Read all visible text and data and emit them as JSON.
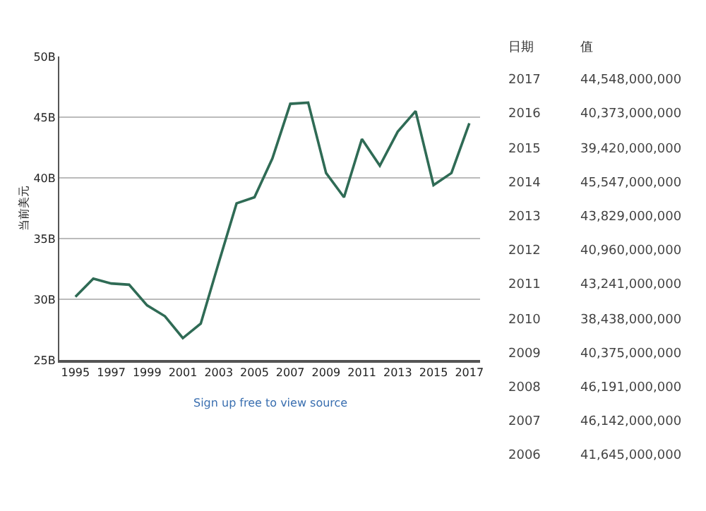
{
  "chart_data": {
    "type": "line",
    "ylabel": "当前美元",
    "x": [
      1995,
      1996,
      1997,
      1998,
      1999,
      2000,
      2001,
      2002,
      2003,
      2004,
      2005,
      2006,
      2007,
      2008,
      2009,
      2010,
      2011,
      2012,
      2013,
      2014,
      2015,
      2016,
      2017
    ],
    "series": [
      {
        "color": "#2f6b55",
        "values": [
          30.2,
          31.7,
          31.3,
          31.2,
          29.5,
          28.6,
          26.8,
          28.0,
          33.0,
          37.9,
          38.4,
          41.6,
          46.1,
          46.2,
          40.4,
          38.4,
          43.2,
          41.0,
          43.8,
          45.5,
          39.4,
          40.4,
          44.5
        ]
      }
    ],
    "xlim": [
      1994.1,
      2017.6
    ],
    "xticks": [
      1995,
      1997,
      1999,
      2001,
      2003,
      2005,
      2007,
      2009,
      2011,
      2013,
      2015,
      2017
    ],
    "ylim": [
      25,
      50
    ],
    "yticks": [
      {
        "value": 25,
        "label": "25B"
      },
      {
        "value": 30,
        "label": "30B"
      },
      {
        "value": 35,
        "label": "35B"
      },
      {
        "value": 40,
        "label": "40B"
      },
      {
        "value": 45,
        "label": "45B"
      },
      {
        "value": 50,
        "label": "50B"
      }
    ],
    "grid": "y",
    "marker": "none",
    "line_style": "solid",
    "annotations": [
      "日期",
      "值",
      "2017",
      "44,548,000,000",
      "2016",
      "40,373,000,000",
      "2015",
      "39,420,000,000",
      "2014",
      "45,547,000,000",
      "2013",
      "43,829,000,000",
      "2012",
      "40,960,000,000",
      "2011",
      "43,241,000,000",
      "2010",
      "38,438,000,000",
      "2009",
      "40,375,000,000",
      "2008",
      "46,191,000,000",
      "2007",
      "46,142,000,000",
      "2006",
      "41,645,000,000",
      "Sign up free to view source"
    ]
  }
}
